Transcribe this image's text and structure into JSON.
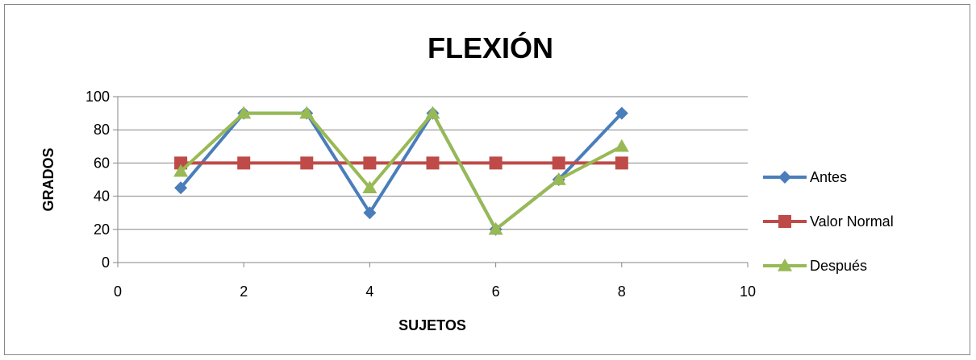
{
  "chart_data": {
    "type": "scatter",
    "title": "FLEXIÓN",
    "xlabel": "SUJETOS",
    "ylabel": "GRADOS",
    "xlim": [
      0,
      10
    ],
    "ylim": [
      0,
      100
    ],
    "x_ticks": [
      0,
      2,
      4,
      6,
      8,
      10
    ],
    "y_ticks": [
      0,
      20,
      40,
      60,
      80,
      100
    ],
    "grid": "horizontal",
    "legend_position": "right",
    "series": [
      {
        "name": "Antes",
        "color": "#4a7ebb",
        "marker": "diamond",
        "x": [
          1,
          2,
          3,
          4,
          5,
          6,
          7,
          8
        ],
        "y": [
          45,
          90,
          90,
          30,
          90,
          20,
          50,
          90
        ]
      },
      {
        "name": "Valor Normal",
        "color": "#be4b48",
        "marker": "square",
        "x": [
          1,
          2,
          3,
          4,
          5,
          6,
          7,
          8
        ],
        "y": [
          60,
          60,
          60,
          60,
          60,
          60,
          60,
          60
        ]
      },
      {
        "name": "Después",
        "color": "#98b954",
        "marker": "triangle",
        "x": [
          1,
          2,
          3,
          4,
          5,
          6,
          7,
          8
        ],
        "y": [
          55,
          90,
          90,
          45,
          90,
          20,
          50,
          70
        ]
      }
    ]
  }
}
